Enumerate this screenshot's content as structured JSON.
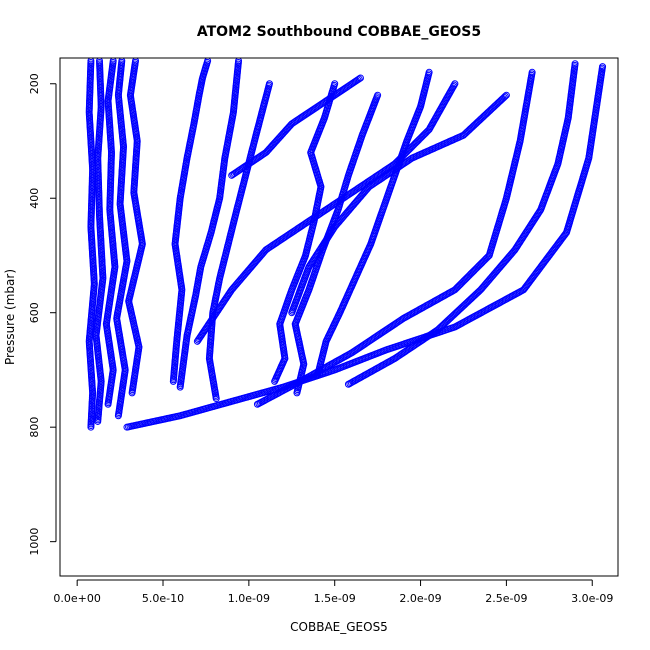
{
  "chart_data": {
    "type": "scatter",
    "title": "ATOM2 Southbound COBBAE_GEOS5",
    "xlabel": "COBBAE_GEOS5",
    "ylabel": "Pressure (mbar)",
    "xlim": [
      -1e-10,
      3.15e-09
    ],
    "ylim": [
      1060,
      155
    ],
    "y_reversed": true,
    "x_ticks": [
      {
        "value": 0,
        "label": "0.0e+00"
      },
      {
        "value": 5e-10,
        "label": "5.0e-10"
      },
      {
        "value": 1e-09,
        "label": "1.0e-09"
      },
      {
        "value": 1.5e-09,
        "label": "1.5e-09"
      },
      {
        "value": 2e-09,
        "label": "2.0e-09"
      },
      {
        "value": 2.5e-09,
        "label": "2.5e-09"
      },
      {
        "value": 3e-09,
        "label": "3.0e-09"
      }
    ],
    "y_ticks": [
      {
        "value": 200,
        "label": "200"
      },
      {
        "value": 400,
        "label": "400"
      },
      {
        "value": 600,
        "label": "600"
      },
      {
        "value": 800,
        "label": "800"
      },
      {
        "value": 1000,
        "label": "1000"
      }
    ],
    "marker": "open-circle",
    "series_color": "#0000ff",
    "grid": false,
    "legend": "none",
    "series": [
      {
        "x": [
          8e-11,
          9e-11,
          7e-11,
          1e-10,
          8e-11,
          9e-11,
          7e-11,
          8e-11
        ],
        "y": [
          800,
          740,
          650,
          550,
          450,
          350,
          250,
          160
        ]
      },
      {
        "x": [
          1.2e-10,
          1.4e-10,
          1.1e-10,
          1.5e-10,
          1.3e-10,
          1.2e-10,
          1.4e-10,
          1.3e-10
        ],
        "y": [
          790,
          720,
          640,
          540,
          430,
          330,
          240,
          160
        ]
      },
      {
        "x": [
          1.8e-10,
          2.1e-10,
          1.7e-10,
          2.2e-10,
          1.9e-10,
          2e-10,
          1.8e-10,
          2.1e-10
        ],
        "y": [
          760,
          700,
          620,
          520,
          420,
          320,
          230,
          160
        ]
      },
      {
        "x": [
          2.4e-10,
          2.8e-10,
          2.3e-10,
          2.9e-10,
          2.5e-10,
          2.7e-10,
          2.4e-10,
          2.6e-10
        ],
        "y": [
          780,
          700,
          610,
          510,
          410,
          310,
          220,
          160
        ]
      },
      {
        "x": [
          3.2e-10,
          3.6e-10,
          3e-10,
          3.8e-10,
          3.3e-10,
          3.5e-10,
          3.1e-10,
          3.4e-10
        ],
        "y": [
          740,
          660,
          580,
          480,
          390,
          300,
          220,
          160
        ]
      },
      {
        "x": [
          5.6e-10,
          5.8e-10,
          6.1e-10,
          5.7e-10,
          6e-10,
          6.4e-10,
          6.8e-10,
          7.1e-10,
          7.3e-10,
          7.6e-10
        ],
        "y": [
          720,
          650,
          560,
          480,
          400,
          330,
          270,
          220,
          190,
          160
        ]
      },
      {
        "x": [
          6e-10,
          6.4e-10,
          6.9e-10,
          7.2e-10,
          7.8e-10,
          8.3e-10,
          8.6e-10,
          9.1e-10,
          9.4e-10
        ],
        "y": [
          730,
          640,
          570,
          520,
          460,
          400,
          330,
          250,
          160
        ]
      },
      {
        "x": [
          8.1e-10,
          7.7e-10,
          7.9e-10,
          8.3e-10,
          8.8e-10,
          9.3e-10,
          9.9e-10,
          1.05e-09,
          1.12e-09
        ],
        "y": [
          750,
          680,
          600,
          540,
          480,
          420,
          350,
          280,
          200
        ]
      },
      {
        "x": [
          1.15e-09,
          1.21e-09,
          1.18e-09,
          1.25e-09,
          1.33e-09,
          1.38e-09,
          1.42e-09,
          1.36e-09,
          1.44e-09,
          1.5e-09
        ],
        "y": [
          720,
          680,
          620,
          560,
          500,
          440,
          380,
          320,
          260,
          200
        ]
      },
      {
        "x": [
          1.28e-09,
          1.32e-09,
          1.27e-09,
          1.35e-09,
          1.43e-09,
          1.52e-09,
          1.58e-09,
          1.66e-09,
          1.75e-09
        ],
        "y": [
          740,
          690,
          620,
          560,
          490,
          420,
          360,
          290,
          220
        ]
      },
      {
        "x": [
          1.4e-09,
          1.45e-09,
          1.53e-09,
          1.62e-09,
          1.71e-09,
          1.78e-09,
          1.85e-09,
          1.92e-09,
          2e-09,
          2.05e-09
        ],
        "y": [
          710,
          650,
          600,
          540,
          480,
          420,
          360,
          300,
          240,
          180
        ]
      },
      {
        "x": [
          1.05e-09,
          1.3e-09,
          1.6e-09,
          1.9e-09,
          2.2e-09,
          2.4e-09,
          2.5e-09,
          2.58e-09,
          2.65e-09
        ],
        "y": [
          760,
          720,
          670,
          610,
          560,
          500,
          400,
          300,
          180
        ]
      },
      {
        "x": [
          1.58e-09,
          1.85e-09,
          2.1e-09,
          2.35e-09,
          2.55e-09,
          2.7e-09,
          2.8e-09,
          2.86e-09,
          2.9e-09
        ],
        "y": [
          725,
          680,
          630,
          560,
          490,
          420,
          340,
          260,
          165
        ]
      },
      {
        "x": [
          2.9e-10,
          6e-10,
          9e-10,
          1.2e-09,
          1.5e-09,
          1.8e-09,
          2.2e-09,
          2.6e-09,
          2.85e-09,
          2.98e-09,
          3.06e-09
        ],
        "y": [
          800,
          780,
          755,
          730,
          700,
          665,
          625,
          560,
          460,
          330,
          170
        ]
      },
      {
        "x": [
          7e-10,
          9e-10,
          1.1e-09,
          1.35e-09,
          1.6e-09,
          1.85e-09,
          2.05e-09,
          2.2e-09
        ],
        "y": [
          650,
          560,
          490,
          440,
          390,
          340,
          280,
          200
        ]
      },
      {
        "x": [
          1.25e-09,
          1.35e-09,
          1.5e-09,
          1.7e-09,
          1.95e-09,
          2.25e-09,
          2.5e-09
        ],
        "y": [
          600,
          520,
          450,
          380,
          330,
          290,
          220
        ]
      },
      {
        "x": [
          9e-10,
          1.1e-09,
          1.25e-09,
          1.45e-09,
          1.65e-09
        ],
        "y": [
          360,
          320,
          270,
          230,
          190
        ]
      }
    ]
  }
}
